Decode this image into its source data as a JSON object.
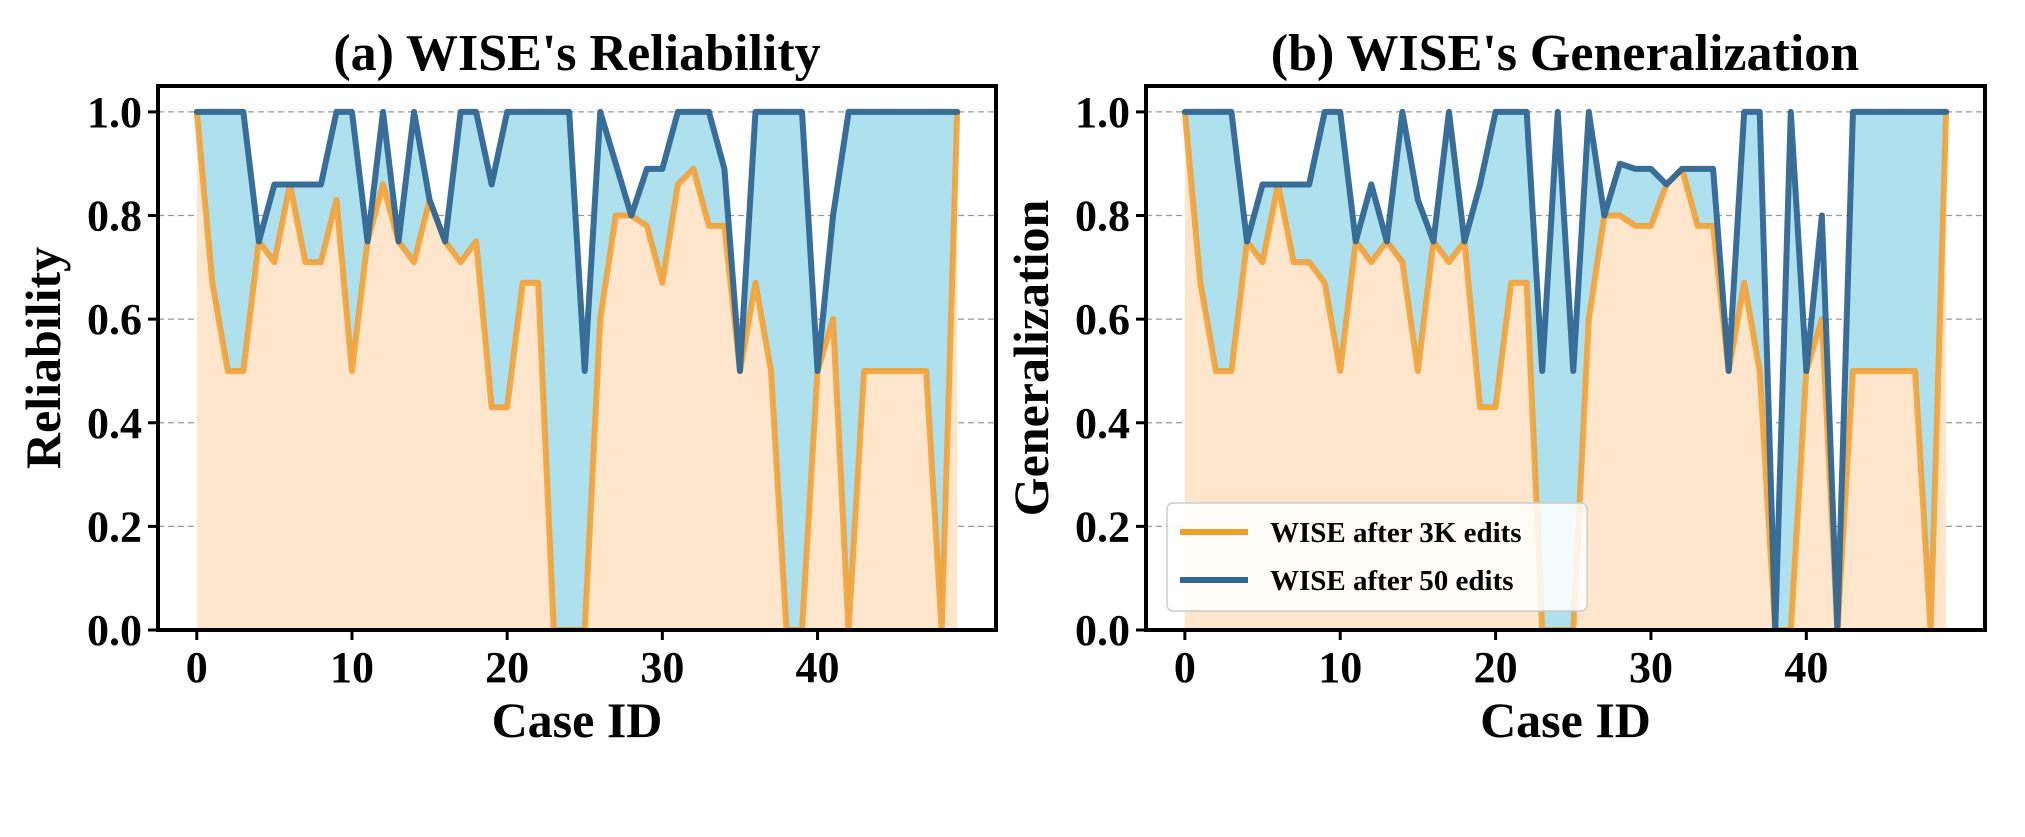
{
  "chart_data": [
    {
      "type": "area",
      "title": "(a) WISE's Reliability",
      "xlabel": "Case ID",
      "ylabel": "Reliability",
      "xlim": [
        -2.5,
        51.5
      ],
      "ylim": [
        0,
        1.05
      ],
      "xticks": [
        0,
        10,
        20,
        30,
        40
      ],
      "yticks": [
        0.0,
        0.2,
        0.4,
        0.6,
        0.8,
        1.0
      ],
      "ytick_labels": [
        "0.0",
        "0.2",
        "0.4",
        "0.6",
        "0.8",
        "1.0"
      ],
      "grid": "horizontal dashed",
      "x": [
        0,
        1,
        2,
        3,
        4,
        5,
        6,
        7,
        8,
        9,
        10,
        11,
        12,
        13,
        14,
        15,
        16,
        17,
        18,
        19,
        20,
        21,
        22,
        23,
        24,
        25,
        26,
        27,
        28,
        29,
        30,
        31,
        32,
        33,
        34,
        35,
        36,
        37,
        38,
        39,
        40,
        41,
        42,
        43,
        44,
        45,
        46,
        47,
        48,
        49
      ],
      "series": [
        {
          "name": "WISE after 3K edits",
          "color": "#F39C2B",
          "fill": "#FDE6CC",
          "values": [
            1.0,
            0.67,
            0.5,
            0.5,
            0.75,
            0.71,
            0.86,
            0.71,
            0.71,
            0.83,
            0.5,
            0.75,
            0.86,
            0.75,
            0.71,
            0.83,
            0.75,
            0.71,
            0.75,
            0.43,
            0.43,
            0.67,
            0.67,
            0.0,
            0.0,
            0.0,
            0.6,
            0.8,
            0.8,
            0.78,
            0.67,
            0.86,
            0.89,
            0.78,
            0.78,
            0.5,
            0.67,
            0.5,
            0.0,
            0.0,
            0.5,
            0.6,
            0.0,
            0.5,
            0.5,
            0.5,
            0.5,
            0.5,
            0.0,
            1.0
          ]
        },
        {
          "name": "WISE after 50 edits",
          "color": "#2F6694",
          "fill": "#AEE0EE",
          "values": [
            1.0,
            1.0,
            1.0,
            1.0,
            0.75,
            0.86,
            0.86,
            0.86,
            0.86,
            1.0,
            1.0,
            0.75,
            1.0,
            0.75,
            1.0,
            0.83,
            0.75,
            1.0,
            1.0,
            0.86,
            1.0,
            1.0,
            1.0,
            1.0,
            1.0,
            0.5,
            1.0,
            0.9,
            0.8,
            0.89,
            0.89,
            1.0,
            1.0,
            1.0,
            0.89,
            0.5,
            1.0,
            1.0,
            1.0,
            1.0,
            0.5,
            0.8,
            1.0,
            1.0,
            1.0,
            1.0,
            1.0,
            1.0,
            1.0,
            1.0
          ]
        }
      ]
    },
    {
      "type": "area",
      "title": "(b) WISE's Generalization",
      "xlabel": "Case ID",
      "ylabel": "Generalization",
      "xlim": [
        -2.5,
        51.5
      ],
      "ylim": [
        0,
        1.05
      ],
      "xticks": [
        0,
        10,
        20,
        30,
        40
      ],
      "yticks": [
        0.0,
        0.2,
        0.4,
        0.6,
        0.8,
        1.0
      ],
      "ytick_labels": [
        "0.0",
        "0.2",
        "0.4",
        "0.6",
        "0.8",
        "1.0"
      ],
      "grid": "horizontal dashed",
      "legend": "lower-left",
      "x": [
        0,
        1,
        2,
        3,
        4,
        5,
        6,
        7,
        8,
        9,
        10,
        11,
        12,
        13,
        14,
        15,
        16,
        17,
        18,
        19,
        20,
        21,
        22,
        23,
        24,
        25,
        26,
        27,
        28,
        29,
        30,
        31,
        32,
        33,
        34,
        35,
        36,
        37,
        38,
        39,
        40,
        41,
        42,
        43,
        44,
        45,
        46,
        47,
        48,
        49
      ],
      "series": [
        {
          "name": "WISE after 3K edits",
          "color": "#F39C2B",
          "fill": "#FDE6CC",
          "values": [
            1.0,
            0.67,
            0.5,
            0.5,
            0.75,
            0.71,
            0.86,
            0.71,
            0.71,
            0.67,
            0.5,
            0.75,
            0.71,
            0.75,
            0.71,
            0.5,
            0.75,
            0.71,
            0.75,
            0.43,
            0.43,
            0.67,
            0.67,
            0.0,
            0.0,
            0.0,
            0.6,
            0.8,
            0.8,
            0.78,
            0.78,
            0.86,
            0.89,
            0.78,
            0.78,
            0.5,
            0.67,
            0.5,
            0.0,
            0.0,
            0.5,
            0.6,
            0.0,
            0.5,
            0.5,
            0.5,
            0.5,
            0.5,
            0.0,
            1.0
          ]
        },
        {
          "name": "WISE after 50 edits",
          "color": "#2F6694",
          "fill": "#AEE0EE",
          "values": [
            1.0,
            1.0,
            1.0,
            1.0,
            0.75,
            0.86,
            0.86,
            0.86,
            0.86,
            1.0,
            1.0,
            0.75,
            0.86,
            0.75,
            1.0,
            0.83,
            0.75,
            1.0,
            0.75,
            0.86,
            1.0,
            1.0,
            1.0,
            0.5,
            1.0,
            0.5,
            1.0,
            0.8,
            0.9,
            0.89,
            0.89,
            0.86,
            0.89,
            0.89,
            0.89,
            0.5,
            1.0,
            1.0,
            0.0,
            1.0,
            0.5,
            0.8,
            0.0,
            1.0,
            1.0,
            1.0,
            1.0,
            1.0,
            1.0,
            1.0
          ]
        }
      ]
    }
  ]
}
